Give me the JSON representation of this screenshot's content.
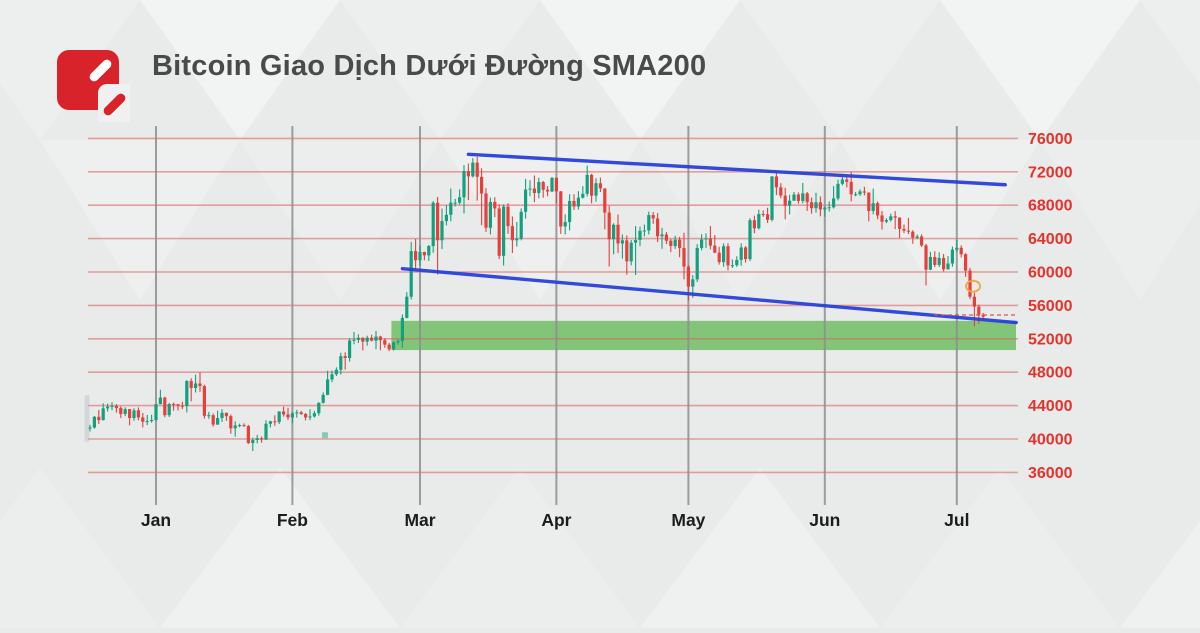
{
  "header": {
    "title": "Bitcoin Giao Dịch Dưới Đường SMA200",
    "brand_color": "#d8232b"
  },
  "chart_data": {
    "type": "candlestick",
    "title": "Bitcoin Giao Dịch Dưới Đường SMA200",
    "xlabel": "",
    "ylabel": "",
    "grid": true,
    "legend": "none",
    "x_ticks": [
      "Jan",
      "Feb",
      "Mar",
      "Apr",
      "May",
      "Jun",
      "Jul"
    ],
    "month_start_candle_indices": [
      15,
      46,
      75,
      106,
      136,
      167,
      197
    ],
    "y_ticks": [
      76000,
      72000,
      68000,
      64000,
      60000,
      56000,
      52000,
      48000,
      44000,
      40000,
      36000
    ],
    "ylim": [
      36000,
      76000
    ],
    "price_per_grid": 4000,
    "candles_ohlc": [
      [
        41280,
        41700,
        40900,
        41370
      ],
      [
        41370,
        42750,
        41250,
        42660
      ],
      [
        42660,
        43480,
        41810,
        42260
      ],
      [
        42260,
        44280,
        42210,
        43670
      ],
      [
        43670,
        44240,
        43290,
        43870
      ],
      [
        43870,
        44400,
        43440,
        43970
      ],
      [
        43970,
        44180,
        43150,
        43710
      ],
      [
        43710,
        43940,
        42500,
        42990
      ],
      [
        42990,
        43800,
        42740,
        43580
      ],
      [
        43580,
        43600,
        41640,
        42510
      ],
      [
        42510,
        43680,
        42170,
        43430
      ],
      [
        43430,
        43790,
        42240,
        42580
      ],
      [
        42580,
        43120,
        41400,
        42070
      ],
      [
        42070,
        42880,
        41660,
        42140
      ],
      [
        42140,
        42900,
        41970,
        42280
      ],
      [
        42280,
        44190,
        42180,
        44180
      ],
      [
        44180,
        45900,
        44150,
        44960
      ],
      [
        44960,
        45060,
        42610,
        42850
      ],
      [
        42850,
        44320,
        42640,
        44180
      ],
      [
        44180,
        44360,
        43390,
        44160
      ],
      [
        44160,
        44210,
        43410,
        43990
      ],
      [
        43990,
        44470,
        43580,
        43940
      ],
      [
        43940,
        47040,
        43180,
        46950
      ],
      [
        46950,
        47270,
        44510,
        46110
      ],
      [
        46110,
        47700,
        45570,
        46650
      ],
      [
        46650,
        48000,
        45650,
        46340
      ],
      [
        46340,
        46510,
        42450,
        42780
      ],
      [
        42780,
        43250,
        42430,
        42850
      ],
      [
        42850,
        43080,
        41480,
        41730
      ],
      [
        41730,
        43390,
        41690,
        42510
      ],
      [
        42510,
        43570,
        42040,
        43140
      ],
      [
        43140,
        43180,
        42180,
        42740
      ],
      [
        42740,
        42930,
        40630,
        41280
      ],
      [
        41280,
        42130,
        40290,
        41620
      ],
      [
        41620,
        41850,
        41410,
        41670
      ],
      [
        41670,
        41880,
        41430,
        41550
      ],
      [
        41550,
        41690,
        39420,
        39510
      ],
      [
        39510,
        40160,
        38550,
        39880
      ],
      [
        39880,
        40490,
        39480,
        40080
      ],
      [
        40080,
        40300,
        39550,
        39940
      ],
      [
        39940,
        42240,
        39880,
        41820
      ],
      [
        41820,
        42190,
        41390,
        42120
      ],
      [
        42120,
        42840,
        41580,
        42030
      ],
      [
        42030,
        43320,
        41800,
        43300
      ],
      [
        43300,
        43880,
        42680,
        42940
      ],
      [
        42940,
        43740,
        42270,
        42580
      ],
      [
        42580,
        43280,
        41880,
        43080
      ],
      [
        43080,
        43490,
        42560,
        43190
      ],
      [
        43190,
        43390,
        42880,
        42990
      ],
      [
        42990,
        43120,
        42220,
        42580
      ],
      [
        42580,
        43550,
        42250,
        42700
      ],
      [
        42700,
        43370,
        42570,
        43090
      ],
      [
        43090,
        44390,
        42790,
        44340
      ],
      [
        44340,
        45590,
        44240,
        45290
      ],
      [
        45290,
        48170,
        45240,
        47130
      ],
      [
        47130,
        48200,
        46800,
        47750
      ],
      [
        47750,
        48580,
        47550,
        48290
      ],
      [
        48290,
        50330,
        47710,
        49920
      ],
      [
        49920,
        50380,
        48310,
        49700
      ],
      [
        49700,
        52070,
        49260,
        51800
      ],
      [
        51800,
        52820,
        51340,
        51880
      ],
      [
        51880,
        52540,
        51500,
        52120
      ],
      [
        52120,
        52190,
        50620,
        51660
      ],
      [
        51660,
        52380,
        51180,
        52120
      ],
      [
        52120,
        52490,
        51680,
        51780
      ],
      [
        51780,
        52940,
        50760,
        52270
      ],
      [
        52270,
        52370,
        50630,
        51840
      ],
      [
        51840,
        52080,
        50930,
        51300
      ],
      [
        51300,
        51530,
        50520,
        50740
      ],
      [
        50740,
        51700,
        50600,
        51570
      ],
      [
        51570,
        51960,
        51290,
        51730
      ],
      [
        51730,
        54910,
        50930,
        54500
      ],
      [
        54500,
        57580,
        54450,
        57040
      ],
      [
        57040,
        63600,
        56700,
        62500
      ],
      [
        62500,
        63950,
        60400,
        61400
      ],
      [
        61400,
        63150,
        60790,
        62400
      ],
      [
        62400,
        62430,
        61390,
        61990
      ],
      [
        61990,
        63230,
        61320,
        63110
      ],
      [
        63110,
        68500,
        62300,
        68300
      ],
      [
        68300,
        69000,
        59700,
        63800
      ],
      [
        63800,
        67590,
        62750,
        66100
      ],
      [
        66100,
        67980,
        65590,
        66850
      ],
      [
        66850,
        69990,
        66080,
        68300
      ],
      [
        68300,
        68760,
        67850,
        68300
      ],
      [
        68300,
        69880,
        68090,
        68950
      ],
      [
        68950,
        72800,
        67020,
        72080
      ],
      [
        72080,
        73000,
        68620,
        71450
      ],
      [
        71450,
        73640,
        71320,
        73100
      ],
      [
        73100,
        73780,
        68550,
        71400
      ],
      [
        71400,
        72420,
        65600,
        69400
      ],
      [
        69400,
        70040,
        64780,
        65300
      ],
      [
        65300,
        68910,
        64500,
        68390
      ],
      [
        68390,
        68960,
        66570,
        67610
      ],
      [
        67610,
        68110,
        61550,
        61940
      ],
      [
        61940,
        68100,
        60770,
        67840
      ],
      [
        67840,
        68240,
        64580,
        65500
      ],
      [
        65500,
        66650,
        62270,
        63800
      ],
      [
        63800,
        65990,
        63050,
        63990
      ],
      [
        63990,
        67620,
        63780,
        67210
      ],
      [
        67210,
        71150,
        66390,
        69880
      ],
      [
        69880,
        70990,
        69080,
        69990
      ],
      [
        69990,
        71560,
        68360,
        69460
      ],
      [
        69460,
        71290,
        68830,
        70780
      ],
      [
        70780,
        70910,
        68890,
        69850
      ],
      [
        69850,
        70310,
        69060,
        69640
      ],
      [
        69640,
        71360,
        69570,
        71280
      ],
      [
        71280,
        71290,
        68220,
        69650
      ],
      [
        69650,
        69710,
        64560,
        65450
      ],
      [
        65450,
        66900,
        64490,
        65980
      ],
      [
        65980,
        69310,
        64990,
        68510
      ],
      [
        68510,
        69320,
        67430,
        67840
      ],
      [
        67840,
        69680,
        67470,
        68900
      ],
      [
        68900,
        70290,
        68790,
        69360
      ],
      [
        69360,
        72750,
        69040,
        71630
      ],
      [
        71630,
        71760,
        68210,
        69140
      ],
      [
        69140,
        71230,
        68420,
        70630
      ],
      [
        70630,
        71300,
        69570,
        70010
      ],
      [
        70010,
        70030,
        65110,
        67120
      ],
      [
        67120,
        67930,
        60660,
        63920
      ],
      [
        63920,
        65840,
        62130,
        65660
      ],
      [
        65660,
        66880,
        62280,
        63420
      ],
      [
        63420,
        64490,
        61600,
        63790
      ],
      [
        63790,
        64370,
        59680,
        61280
      ],
      [
        61280,
        63830,
        60800,
        63510
      ],
      [
        63510,
        65500,
        59640,
        63840
      ],
      [
        63840,
        65430,
        63090,
        64940
      ],
      [
        64940,
        65690,
        64250,
        64970
      ],
      [
        64970,
        67230,
        64500,
        66820
      ],
      [
        66820,
        67180,
        65770,
        66410
      ],
      [
        66410,
        67060,
        63580,
        64280
      ],
      [
        64280,
        65290,
        62780,
        64490
      ],
      [
        64490,
        64800,
        63340,
        63750
      ],
      [
        63750,
        63950,
        62380,
        63110
      ],
      [
        63110,
        64340,
        62770,
        63870
      ],
      [
        63870,
        64210,
        61770,
        62880
      ],
      [
        62880,
        64700,
        59120,
        60640
      ],
      [
        60640,
        60840,
        56550,
        58250
      ],
      [
        58250,
        59620,
        56910,
        59120
      ],
      [
        59120,
        63330,
        58810,
        62880
      ],
      [
        62880,
        64520,
        62600,
        63890
      ],
      [
        63890,
        64640,
        62870,
        64010
      ],
      [
        64010,
        65500,
        62700,
        63160
      ],
      [
        63160,
        64420,
        62260,
        62310
      ],
      [
        62310,
        63020,
        60890,
        61180
      ],
      [
        61180,
        63420,
        60630,
        63090
      ],
      [
        63090,
        63450,
        60190,
        60790
      ],
      [
        60790,
        61500,
        60490,
        60820
      ],
      [
        60820,
        61880,
        60610,
        61450
      ],
      [
        61450,
        63440,
        60750,
        62940
      ],
      [
        62940,
        63110,
        61130,
        61550
      ],
      [
        61550,
        66440,
        61320,
        66200
      ],
      [
        66200,
        66750,
        64640,
        65230
      ],
      [
        65230,
        67460,
        65110,
        66940
      ],
      [
        66940,
        67380,
        66620,
        66910
      ],
      [
        66910,
        67700,
        65860,
        66250
      ],
      [
        66250,
        71480,
        66060,
        71440
      ],
      [
        71440,
        71950,
        69200,
        70150
      ],
      [
        70150,
        70640,
        68840,
        69150
      ],
      [
        69150,
        70090,
        66320,
        67960
      ],
      [
        67960,
        69250,
        66900,
        68540
      ],
      [
        68540,
        69590,
        68530,
        69280
      ],
      [
        69280,
        69520,
        68180,
        68510
      ],
      [
        68510,
        70670,
        68230,
        69420
      ],
      [
        69420,
        69580,
        67320,
        68360
      ],
      [
        68360,
        68910,
        66990,
        67640
      ],
      [
        67640,
        69500,
        67120,
        68350
      ],
      [
        68350,
        69050,
        66660,
        67490
      ],
      [
        67490,
        67850,
        66610,
        67710
      ],
      [
        67710,
        68440,
        67250,
        67750
      ],
      [
        67750,
        70290,
        67600,
        68810
      ],
      [
        68810,
        71060,
        68570,
        70560
      ],
      [
        70560,
        71760,
        70380,
        71080
      ],
      [
        71080,
        71390,
        70130,
        70790
      ],
      [
        70790,
        71990,
        68450,
        69300
      ],
      [
        69300,
        69590,
        69080,
        69310
      ],
      [
        69310,
        69900,
        69120,
        69650
      ],
      [
        69650,
        70200,
        69180,
        69510
      ],
      [
        69510,
        69550,
        66060,
        67310
      ],
      [
        67310,
        69990,
        66920,
        68240
      ],
      [
        68240,
        68440,
        66310,
        66770
      ],
      [
        66770,
        67290,
        65080,
        66030
      ],
      [
        66030,
        66430,
        65850,
        66220
      ],
      [
        66220,
        66990,
        66040,
        66670
      ],
      [
        66670,
        67290,
        65130,
        66500
      ],
      [
        66500,
        66570,
        64060,
        65160
      ],
      [
        65160,
        65700,
        64660,
        64960
      ],
      [
        64960,
        66480,
        64550,
        64830
      ],
      [
        64830,
        65010,
        63380,
        64100
      ],
      [
        64100,
        64490,
        63940,
        64260
      ],
      [
        64260,
        64510,
        63010,
        63180
      ],
      [
        63180,
        63370,
        58400,
        60280
      ],
      [
        60280,
        62420,
        60230,
        61800
      ],
      [
        61800,
        62490,
        60590,
        60850
      ],
      [
        60850,
        62360,
        60600,
        61680
      ],
      [
        61680,
        62160,
        60060,
        60320
      ],
      [
        60320,
        61900,
        60290,
        61020
      ],
      [
        61020,
        63050,
        60620,
        62680
      ],
      [
        62680,
        63840,
        62370,
        62900
      ],
      [
        62900,
        63200,
        61740,
        62130
      ],
      [
        62130,
        62250,
        59420,
        60170
      ],
      [
        60170,
        60480,
        56780,
        57040
      ],
      [
        57040,
        57500,
        53500,
        55850
      ],
      [
        55850,
        56100,
        53800,
        54900
      ],
      [
        54900,
        55100,
        54250,
        54650
      ]
    ],
    "support_zone": {
      "price_from": 50650,
      "price_to": 54150,
      "start_candle_index": 69,
      "extends_to_right_edge": true
    },
    "trendlines": [
      {
        "name": "upper-resistance",
        "from_index": 86,
        "from_price": 74100,
        "to_index": 208,
        "to_price": 70450
      },
      {
        "name": "lower-support",
        "from_index": 71,
        "from_price": 60400,
        "to_index": 210.5,
        "to_price": 53950
      }
    ],
    "last_price_line": {
      "price": 54850,
      "style": "dashed"
    },
    "break_marker": {
      "candle_index": 200.7,
      "price": 58300
    },
    "left_edge_ghost": {
      "price_high": 45250,
      "price_low": 39700
    },
    "stray_mark": {
      "candle_index": 53.4,
      "price": 40450
    },
    "colors": {
      "up": "#12a07e",
      "down": "#e5403c",
      "grid_h": "#dd5f5b",
      "grid_v": "#8e8e90",
      "y_label": "#e5322c",
      "x_label": "#1c1c1e",
      "trendline": "#2941da",
      "zone": "#68bc5c",
      "price_line": "#e0504c",
      "marker": "#f2a33c"
    }
  }
}
